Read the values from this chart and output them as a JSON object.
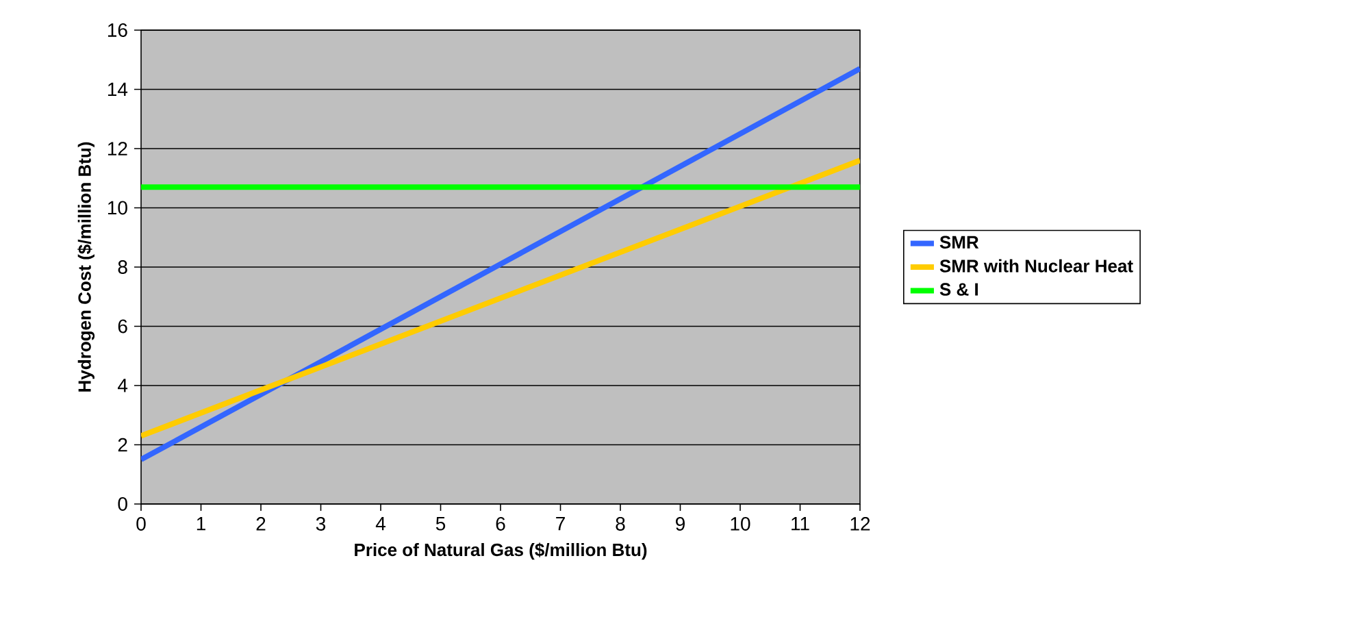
{
  "chart_data": {
    "type": "line",
    "xlabel": "Price of Natural Gas ($/million Btu)",
    "ylabel": "Hydrogen Cost ($/million Btu)",
    "xlim": [
      0,
      12
    ],
    "ylim": [
      0,
      16
    ],
    "xticks": [
      0,
      1,
      2,
      3,
      4,
      5,
      6,
      7,
      8,
      9,
      10,
      11,
      12
    ],
    "yticks": [
      0,
      2,
      4,
      6,
      8,
      10,
      12,
      14,
      16
    ],
    "grid": "y",
    "legend": "right",
    "marker": "none",
    "line_style": "solid",
    "x": [
      0,
      12
    ],
    "series": [
      {
        "name": "SMR",
        "color": "#3366ff",
        "values": [
          1.5,
          14.7
        ]
      },
      {
        "name": "SMR with Nuclear Heat",
        "color": "#ffcc00",
        "values": [
          2.3,
          11.6
        ]
      },
      {
        "name": "S & I",
        "color": "#00ff00",
        "values": [
          10.7,
          10.7
        ]
      }
    ]
  }
}
